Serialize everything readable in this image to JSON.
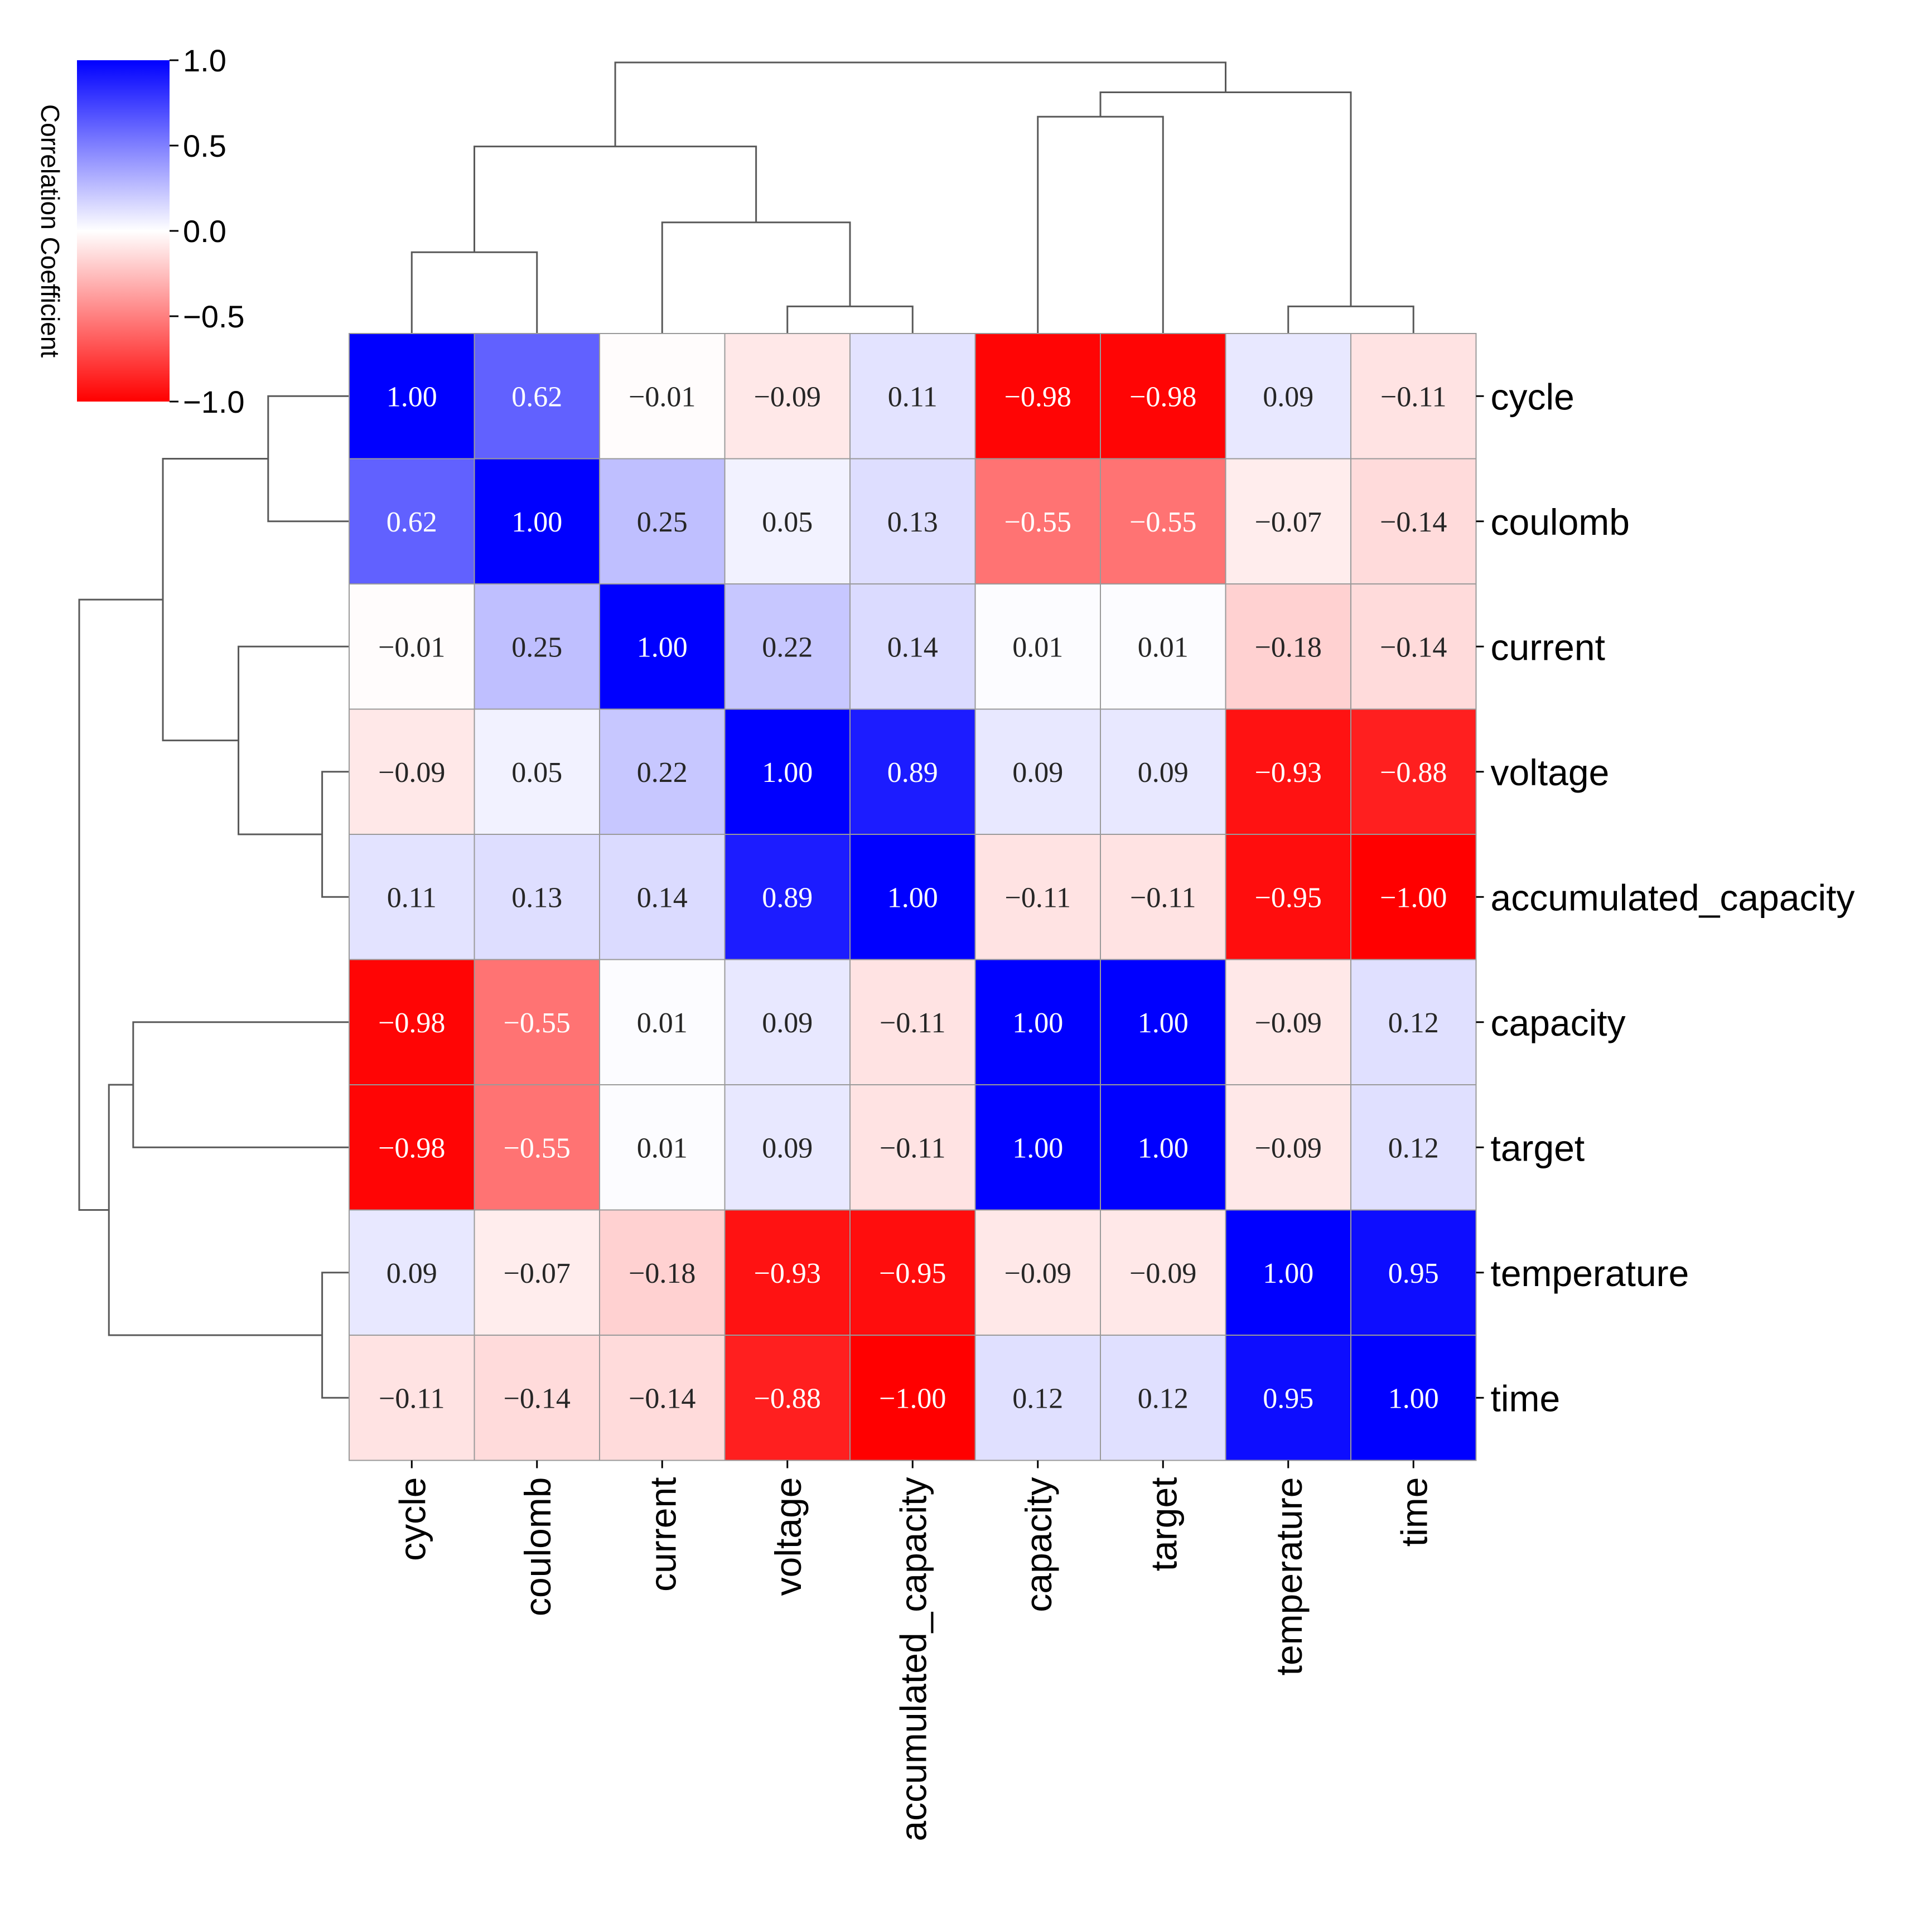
{
  "chart_data": {
    "type": "heatmap",
    "subtype": "clustermap",
    "title": "",
    "labels": [
      "cycle",
      "coulomb",
      "current",
      "voltage",
      "accumulated_capacity",
      "capacity",
      "target",
      "temperature",
      "time"
    ],
    "matrix": [
      [
        1.0,
        0.62,
        -0.01,
        -0.09,
        0.11,
        -0.98,
        -0.98,
        0.09,
        -0.11
      ],
      [
        0.62,
        1.0,
        0.25,
        0.05,
        0.13,
        -0.55,
        -0.55,
        -0.07,
        -0.14
      ],
      [
        -0.01,
        0.25,
        1.0,
        0.22,
        0.14,
        0.01,
        0.01,
        -0.18,
        -0.14
      ],
      [
        -0.09,
        0.05,
        0.22,
        1.0,
        0.89,
        0.09,
        0.09,
        -0.93,
        -0.88
      ],
      [
        0.11,
        0.13,
        0.14,
        0.89,
        1.0,
        -0.11,
        -0.11,
        -0.95,
        -1.0
      ],
      [
        -0.98,
        -0.55,
        0.01,
        0.09,
        -0.11,
        1.0,
        1.0,
        -0.09,
        0.12
      ],
      [
        -0.98,
        -0.55,
        0.01,
        0.09,
        -0.11,
        1.0,
        1.0,
        -0.09,
        0.12
      ],
      [
        0.09,
        -0.07,
        -0.18,
        -0.93,
        -0.95,
        -0.09,
        -0.09,
        1.0,
        0.95
      ],
      [
        -0.11,
        -0.14,
        -0.14,
        -0.88,
        -1.0,
        0.12,
        0.12,
        0.95,
        1.0
      ]
    ],
    "value_format": "2dp_unicode_minus",
    "colormap": {
      "low_color": "#ff0000",
      "mid_color": "#ffffff",
      "high_color": "#0000ff",
      "vmin": -1.0,
      "vmax": 1.0
    },
    "colorbar": {
      "label": "Correlation Coefficient",
      "ticks": [
        1.0,
        0.5,
        0.0,
        -0.5,
        -1.0
      ],
      "tick_labels": [
        "1.0",
        "0.5",
        "0.0",
        "−0.5",
        "−1.0"
      ],
      "placement": "top-left"
    },
    "dendrogram": {
      "leaf_order": [
        "cycle",
        "coulomb",
        "current",
        "voltage",
        "accumulated_capacity",
        "capacity",
        "target",
        "temperature",
        "time"
      ],
      "merges": [
        {
          "left": [
            "leaf",
            0
          ],
          "right": [
            "leaf",
            1
          ],
          "height": 0.3
        },
        {
          "left": [
            "leaf",
            3
          ],
          "right": [
            "leaf",
            4
          ],
          "height": 0.1
        },
        {
          "left": [
            "leaf",
            2
          ],
          "right": [
            "node",
            1
          ],
          "height": 0.41
        },
        {
          "left": [
            "node",
            0
          ],
          "right": [
            "node",
            2
          ],
          "height": 0.69
        },
        {
          "left": [
            "leaf",
            7
          ],
          "right": [
            "leaf",
            8
          ],
          "height": 0.1
        },
        {
          "left": [
            "leaf",
            5
          ],
          "right": [
            "leaf",
            6
          ],
          "height": 0.8
        },
        {
          "left": [
            "node",
            5
          ],
          "right": [
            "node",
            4
          ],
          "height": 0.89
        },
        {
          "left": [
            "node",
            3
          ],
          "right": [
            "node",
            6
          ],
          "height": 1.0
        }
      ]
    },
    "colors": {
      "grid_line": "#9a9a9a",
      "dendrogram_line": "#595959",
      "dark_text": "#262626",
      "light_text": "#ffffff"
    }
  }
}
